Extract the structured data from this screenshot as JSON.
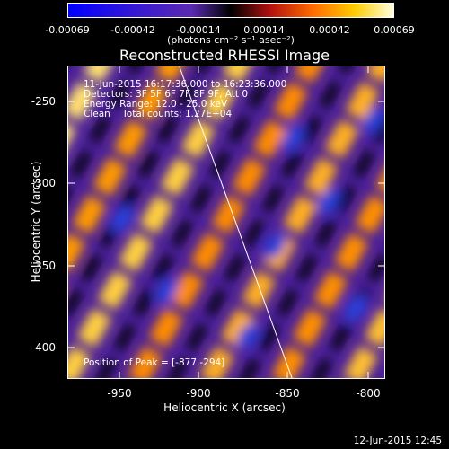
{
  "colorbar": {
    "ticks": [
      "-0.00069",
      "-0.00042",
      "-0.00014",
      "0.00014",
      "0.00042",
      "0.00069"
    ],
    "units": "(photons cm⁻² s⁻¹ asec⁻²)"
  },
  "plot": {
    "title": "Reconstructed RHESSI Image",
    "info_line1": "11-Jun-2015 16:17:36.000 to 16:23:36.000",
    "info_line2": "Detectors: 3F 5F 6F 7F 8F 9F, Att 0",
    "info_line3": "Energy Range: 12.0 - 25.0 keV",
    "info_line4": "Clean    Total counts: 1.27E+04",
    "peak_label": "Position of Peak = [-877,-294]",
    "xlabel": "Heliocentric X (arcsec)",
    "ylabel": "Heliocentric Y (arcsec)",
    "xticks": [
      "-950",
      "-900",
      "-850",
      "-800"
    ],
    "yticks": [
      "-250",
      "-300",
      "-350",
      "-400"
    ]
  },
  "footer": {
    "timestamp": "12-Jun-2015 12:45"
  },
  "colors": {
    "background": "#000000",
    "text": "#ffffff",
    "colormap_low": "#0000ff",
    "colormap_mid": "#5a2ab0",
    "colormap_high": "#ffff80"
  }
}
